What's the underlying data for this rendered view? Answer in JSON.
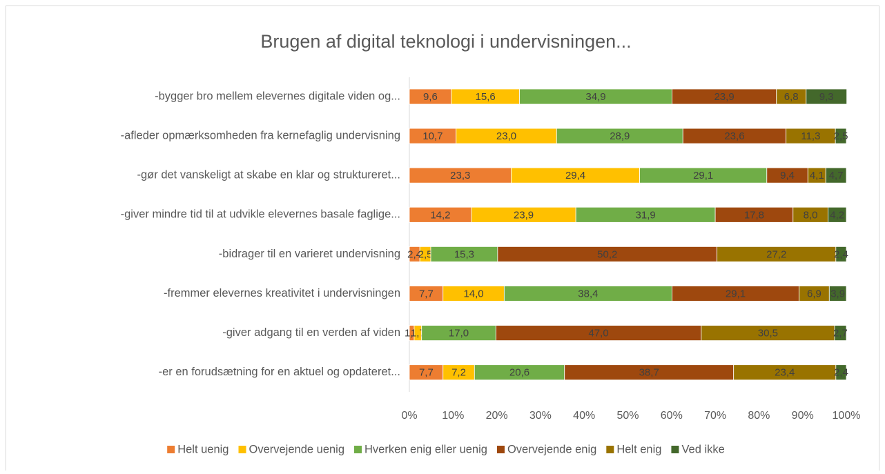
{
  "chart_data": {
    "type": "stacked_bar_horizontal",
    "title": "Brugen af digital teknologi i undervisningen...",
    "categories": [
      "-bygger bro mellem elevernes digitale viden og...",
      "-afleder opmærksomheden fra kernefaglig undervisning",
      "-gør det vanskeligt at skabe en klar og struktureret...",
      "-giver mindre tid til at udvikle elevernes basale faglige...",
      "-bidrager til en varieret undervisning",
      "-fremmer elevernes kreativitet i undervisningen",
      "-giver adgang til en verden af viden",
      "-er en forudsætning for en aktuel og opdateret..."
    ],
    "series": [
      {
        "name": "Helt uenig",
        "color": "#ED7D31",
        "values": [
          9.6,
          10.7,
          23.3,
          14.2,
          2.4,
          7.7,
          1.1,
          7.7
        ],
        "value_labels": [
          "9,6",
          "10,7",
          "23,3",
          "14,2",
          "2,4",
          "7,7",
          "1,1",
          "7,7"
        ]
      },
      {
        "name": "Overvejende uenig",
        "color": "#FFC000",
        "values": [
          15.6,
          23.0,
          29.4,
          23.9,
          2.5,
          14.0,
          1.7,
          7.2
        ],
        "value_labels": [
          "15,6",
          "23,0",
          "29,4",
          "23,9",
          "2,5",
          "14,0",
          "1,7",
          "7,2"
        ]
      },
      {
        "name": "Hverken enig eller uenig",
        "color": "#70AD47",
        "values": [
          34.9,
          28.9,
          29.1,
          31.9,
          15.3,
          38.4,
          17.0,
          20.6
        ],
        "value_labels": [
          "34,9",
          "28,9",
          "29,1",
          "31,9",
          "15,3",
          "38,4",
          "17,0",
          "20,6"
        ]
      },
      {
        "name": "Overvejende enig",
        "color": "#9E480E",
        "values": [
          23.9,
          23.6,
          9.4,
          17.8,
          50.2,
          29.1,
          47.0,
          38.7
        ],
        "value_labels": [
          "23,9",
          "23,6",
          "9,4",
          "17,8",
          "50,2",
          "29,1",
          "47,0",
          "38,7"
        ]
      },
      {
        "name": "Helt enig",
        "color": "#997300",
        "values": [
          6.8,
          11.3,
          4.1,
          8.0,
          27.2,
          6.9,
          30.5,
          23.4
        ],
        "value_labels": [
          "6,8",
          "11,3",
          "4,1",
          "8,0",
          "27,2",
          "6,9",
          "30,5",
          "23,4"
        ]
      },
      {
        "name": "Ved ikke",
        "color": "#43682B",
        "values": [
          9.3,
          2.5,
          4.7,
          4.2,
          2.4,
          3.9,
          2.7,
          2.4
        ],
        "value_labels": [
          "9,3",
          "2,5",
          "4,7",
          "4,2",
          "2,4",
          "3,9",
          "2,7",
          "2,4"
        ]
      }
    ],
    "xlim": [
      0,
      100
    ],
    "xticks": [
      {
        "value": 0,
        "label": "0%"
      },
      {
        "value": 10,
        "label": "10%"
      },
      {
        "value": 20,
        "label": "20%"
      },
      {
        "value": 30,
        "label": "30%"
      },
      {
        "value": 40,
        "label": "40%"
      },
      {
        "value": 50,
        "label": "50%"
      },
      {
        "value": 60,
        "label": "60%"
      },
      {
        "value": 70,
        "label": "70%"
      },
      {
        "value": 80,
        "label": "80%"
      },
      {
        "value": 90,
        "label": "90%"
      },
      {
        "value": 100,
        "label": "100%"
      }
    ],
    "legend": "bottom"
  }
}
